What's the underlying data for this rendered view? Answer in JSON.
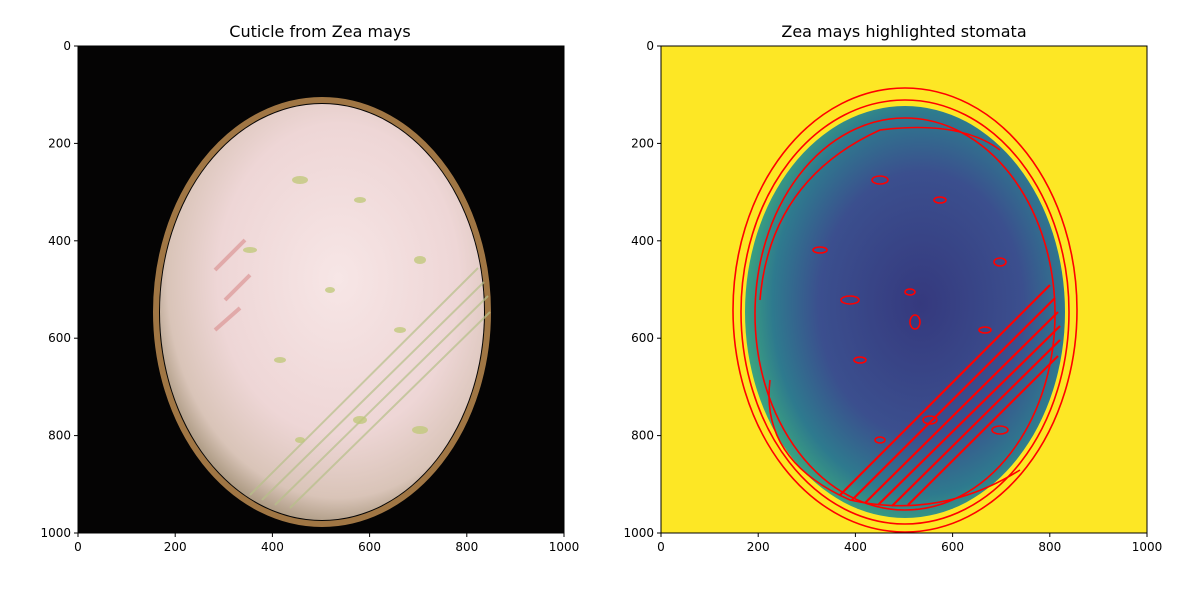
{
  "panels": [
    {
      "title": "Cuticle from Zea mays",
      "xticks": [
        "0",
        "200",
        "400",
        "600",
        "800",
        "1000"
      ],
      "yticks": [
        "0",
        "200",
        "400",
        "600",
        "800",
        "1000"
      ]
    },
    {
      "title": "Zea mays highlighted stomata",
      "xticks": [
        "0",
        "200",
        "400",
        "600",
        "800",
        "1000"
      ],
      "yticks": [
        "0",
        "200",
        "400",
        "600",
        "800",
        "1000"
      ]
    }
  ],
  "colors": {
    "photo_background": "#050404",
    "photo_field": "#f1dada",
    "mask_background": "#fde725",
    "mask_interior": "#3b4f8e",
    "contour": "#ff0000"
  }
}
